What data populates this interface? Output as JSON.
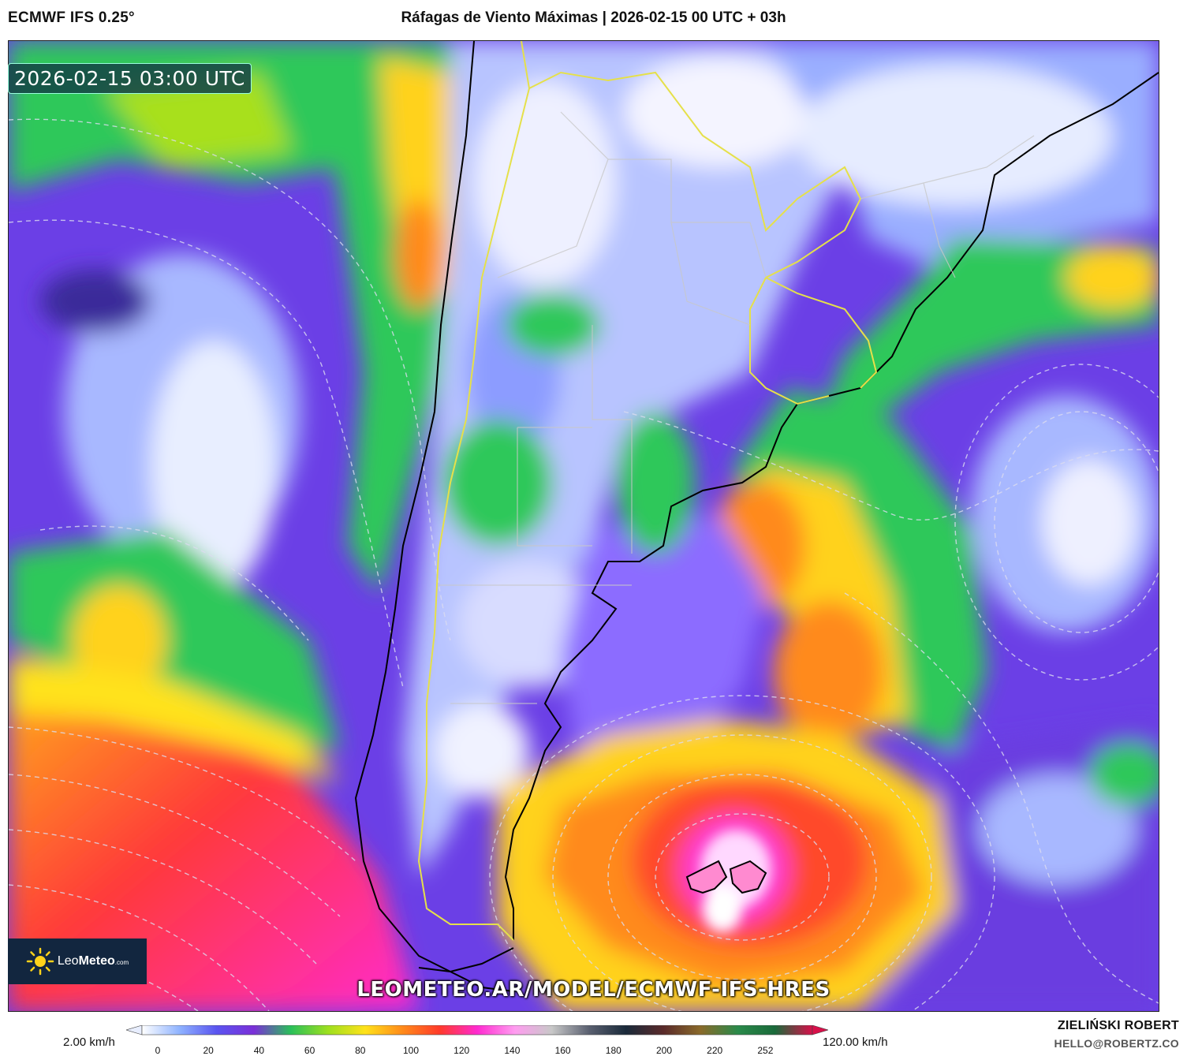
{
  "header": {
    "model": "ECMWF IFS 0.25°",
    "title": "Ráfagas de Viento Máximas | 2026-02-15 00 UTC + 03h"
  },
  "map": {
    "valid_time": "2026-02-15 03:00 UTC",
    "watermark_url": "LEOMETEO.AR/MODEL/ECMWF-IFS-HRES",
    "logo": {
      "text_regular": "Leo",
      "text_bold": "Meteo",
      "suffix": ".com"
    },
    "isobar_color": "#d8d8e8",
    "border_color": "#e5e04a"
  },
  "colorbar": {
    "min_label": "2.00 km/h",
    "max_label": "120.00 km/h",
    "ticks": [
      "0",
      "20",
      "40",
      "60",
      "80",
      "100",
      "120",
      "140",
      "160",
      "180",
      "200",
      "220",
      "252"
    ],
    "colors": [
      "#ffffff",
      "#8fb3ff",
      "#5a55f0",
      "#7a2fd8",
      "#2ac05a",
      "#9ee01e",
      "#ffe21a",
      "#ff8a1a",
      "#ff3a2a",
      "#ff2ad0",
      "#ff9cf0",
      "#c8c8c8",
      "#5a6070",
      "#1a2a3a",
      "#5a2a2a",
      "#8a6a2a",
      "#2a8a4a",
      "#1a6a3a",
      "#d8104a"
    ]
  },
  "footer": {
    "author": "ZIELIŃSKI ROBERT",
    "email": "HELLO@ROBERTZ.CO"
  }
}
